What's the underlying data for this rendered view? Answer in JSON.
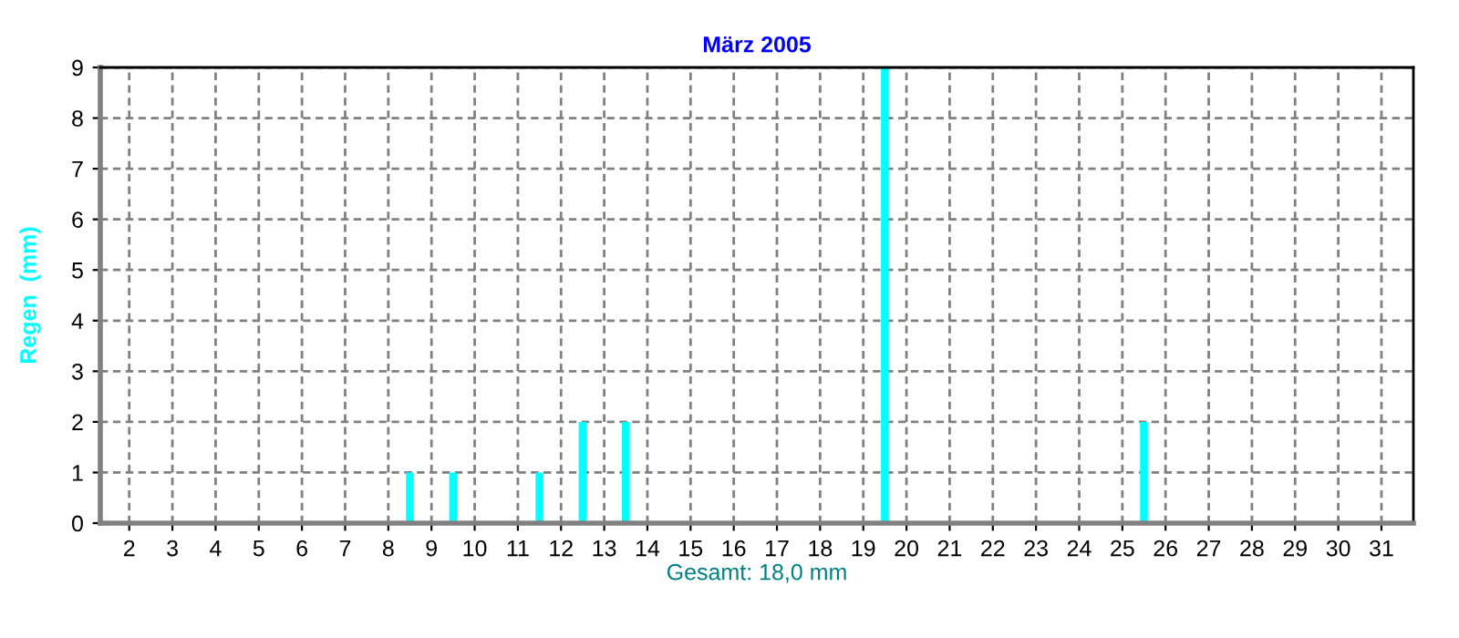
{
  "chart_data": {
    "type": "bar",
    "title": "März 2005",
    "xlabel": "Gesamt: 18,0 mm",
    "ylabel": "Regen  (mm)",
    "x": [
      1.5,
      2.5,
      3.5,
      4.5,
      5.5,
      6.5,
      7.5,
      8.5,
      9.5,
      10.5,
      11.5,
      12.5,
      13.5,
      14.5,
      15.5,
      16.5,
      17.5,
      18.5,
      19.5,
      20.5,
      21.5,
      22.5,
      23.5,
      24.5,
      25.5,
      26.5,
      27.5,
      28.5,
      29.5,
      30.5,
      31.5
    ],
    "values": [
      0,
      0,
      0,
      0,
      0,
      0,
      0,
      1,
      1,
      0,
      1,
      2,
      2,
      0,
      0,
      0,
      0,
      0,
      9,
      0,
      0,
      0,
      0,
      0,
      2,
      0,
      0,
      0,
      0,
      0,
      0
    ],
    "color": "#00ffff",
    "xlim": [
      1.33,
      31.74
    ],
    "xticks": [
      2,
      3,
      4,
      5,
      6,
      7,
      8,
      9,
      10,
      11,
      12,
      13,
      14,
      15,
      16,
      17,
      18,
      19,
      20,
      21,
      22,
      23,
      24,
      25,
      26,
      27,
      28,
      29,
      30,
      31
    ],
    "ylim": [
      0,
      9
    ],
    "yticks": [
      0,
      1,
      2,
      3,
      4,
      5,
      6,
      7,
      8,
      9
    ],
    "grid": true,
    "line_style": "dashed"
  }
}
